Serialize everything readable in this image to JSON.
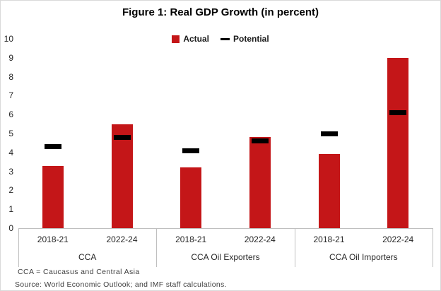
{
  "figure": {
    "title": "Figure 1: Real GDP Growth (in percent)",
    "notes": [
      "CCA = Caucasus and Central Asia",
      "Source: World Economic Outlook; and IMF staff calculations."
    ]
  },
  "legend": {
    "items": [
      {
        "label": "Actual",
        "swatch": "bar-swatch-icon"
      },
      {
        "label": "Potential",
        "swatch": "dash-swatch-icon"
      }
    ]
  },
  "chart_data": {
    "type": "bar",
    "title": "Figure 1: Real GDP Growth (in percent)",
    "groups": [
      "CCA",
      "CCA Oil Exporters",
      "CCA Oil Importers"
    ],
    "categories": [
      "2018-21",
      "2022-24"
    ],
    "series": [
      {
        "name": "Actual",
        "style": "bar",
        "color": "#c41618",
        "values": [
          [
            3.3,
            5.5
          ],
          [
            3.2,
            4.8
          ],
          [
            3.9,
            9.0
          ]
        ]
      },
      {
        "name": "Potential",
        "style": "dash",
        "color": "#000000",
        "values": [
          [
            4.3,
            4.8
          ],
          [
            4.1,
            4.6
          ],
          [
            5.0,
            6.1
          ]
        ]
      }
    ],
    "ylim": [
      0,
      10
    ],
    "ytick_step": 1,
    "grid": false,
    "legend_position": "top-center",
    "xlabel": "",
    "ylabel": ""
  },
  "colors": {
    "bar_red": "#c41618",
    "dash_black": "#000000",
    "axis_gray": "#bfbfbf",
    "border_gray": "#d9d9d9",
    "tick_text": "#262626",
    "note_text": "#3f3f3f"
  }
}
